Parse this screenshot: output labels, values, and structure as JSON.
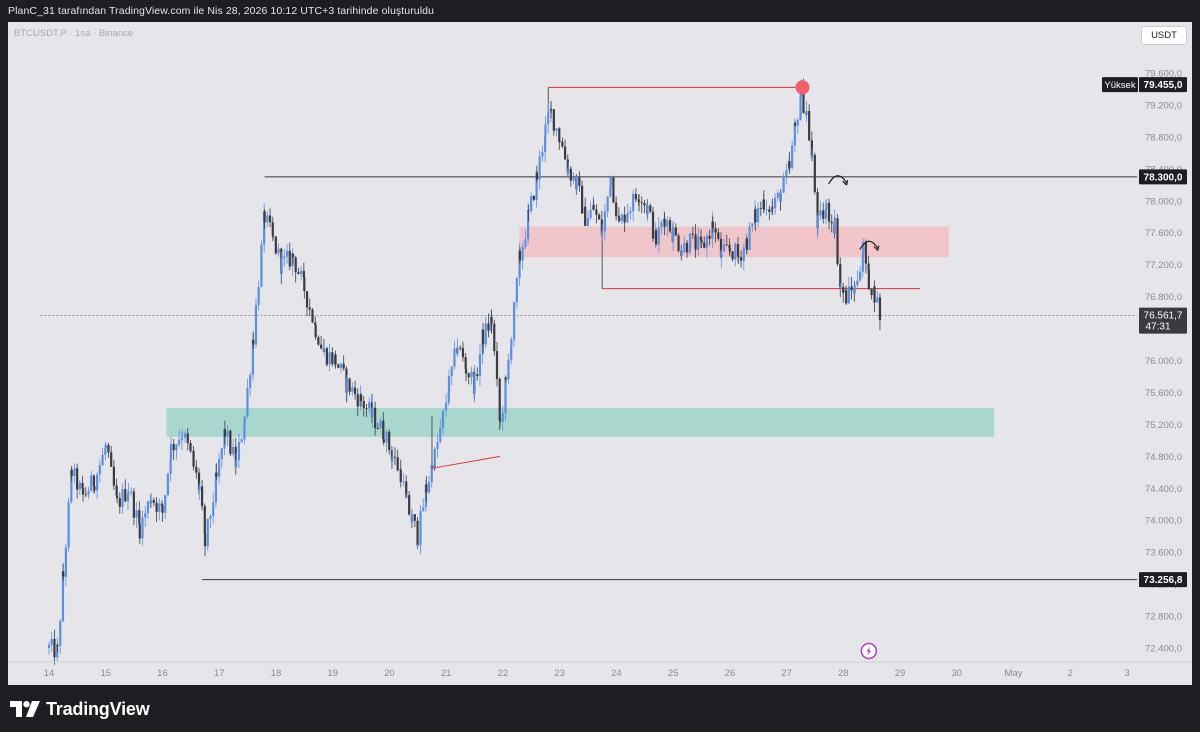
{
  "header": {
    "attribution": "PlanC_31 tarafından TradingView.com ile Nis 28, 2026 10:12 UTC+3 tarihinde oluşturuldu"
  },
  "chart_header": {
    "ticker": "BTCUSDT.P · 1sa · Binance",
    "currency_button": "USDT"
  },
  "footer": {
    "brand": "TradingView"
  },
  "chart_data": {
    "type": "candlestick",
    "title": "",
    "symbol": "BTCUSDT.P",
    "interval": "1sa",
    "exchange": "Binance",
    "currency": "USDT",
    "ylim": [
      72200,
      79800
    ],
    "y_ticks": [
      "72.400,0",
      "72.800,0",
      "73.200,0",
      "73.600,0",
      "74.000,0",
      "74.400,0",
      "74.800,0",
      "75.200,0",
      "75.600,0",
      "76.000,0",
      "76.400,0",
      "76.800,0",
      "77.200,0",
      "77.600,0",
      "78.000,0",
      "78.400,0",
      "78.800,0",
      "79.200,0",
      "79.600,0"
    ],
    "y_tick_values": [
      72400,
      72800,
      73200,
      73600,
      74000,
      74400,
      74800,
      75200,
      75600,
      76000,
      76400,
      76800,
      77200,
      77600,
      78000,
      78400,
      78800,
      79200,
      79600
    ],
    "x_ticks": [
      "14",
      "15",
      "16",
      "17",
      "18",
      "19",
      "20",
      "21",
      "22",
      "23",
      "24",
      "25",
      "26",
      "27",
      "28",
      "29",
      "30",
      "May",
      "2",
      "3"
    ],
    "x_tick_days": [
      14,
      15,
      16,
      17,
      18,
      19,
      20,
      21,
      22,
      23,
      24,
      25,
      26,
      27,
      28,
      29,
      30,
      31,
      32,
      33
    ],
    "xlim_days": [
      13.85,
      33.4
    ],
    "price_labels": [
      {
        "text": "79.455,0",
        "prefix": "Yüksek",
        "value": 79455,
        "style": "dark"
      },
      {
        "text": "78.300,0",
        "value": 78300,
        "style": "dark"
      },
      {
        "text": "76.561,7",
        "sub": "47:31",
        "value": 76561.7,
        "style": "last"
      },
      {
        "text": "73.256,8",
        "value": 73256.8,
        "style": "dark"
      }
    ],
    "levels": [
      {
        "name": "range-high",
        "price": 78300,
        "from_day": 17.8,
        "to_day": 33.4,
        "color": "#4a4a50"
      },
      {
        "name": "range-low",
        "price": 73256.8,
        "from_day": 16.7,
        "to_day": 33.4,
        "color": "#4a4a50"
      },
      {
        "name": "current-price",
        "price": 76561.7,
        "from_day": 13.85,
        "to_day": 33.4,
        "color": "#7a7a80",
        "dashed": true
      },
      {
        "name": "red-support",
        "price": 76900,
        "from_day": 23.75,
        "to_day": 29.35,
        "color": "#e0303a"
      },
      {
        "name": "red-high",
        "price": 79420,
        "from_day": 22.8,
        "to_day": 27.3,
        "color": "#e0303a"
      }
    ],
    "zones": [
      {
        "name": "supply-zone",
        "top": 77670,
        "bottom": 77300,
        "from_day": 22.3,
        "to_day": 29.85,
        "color": "#f0c6cb"
      },
      {
        "name": "demand-zone",
        "top": 75400,
        "bottom": 75050,
        "from_day": 16.08,
        "to_day": 30.65,
        "color": "#a9d6cd"
      }
    ],
    "trendline": {
      "from": [
        20.75,
        74650
      ],
      "to": [
        21.95,
        74800
      ],
      "color": "#e0303a"
    },
    "marker": {
      "day": 27.28,
      "price": 79420,
      "color": "#f0606a"
    },
    "series": [
      {
        "name": "",
        "points": [
          [
            14.0,
            72400
          ],
          [
            14.15,
            72350
          ],
          [
            14.25,
            73300
          ],
          [
            14.4,
            74600
          ],
          [
            14.6,
            74300
          ],
          [
            14.8,
            74500
          ],
          [
            15.0,
            74900
          ],
          [
            15.2,
            74200
          ],
          [
            15.4,
            74400
          ],
          [
            15.6,
            73900
          ],
          [
            15.8,
            74300
          ],
          [
            16.0,
            74100
          ],
          [
            16.15,
            74900
          ],
          [
            16.35,
            75100
          ],
          [
            16.5,
            74800
          ],
          [
            16.65,
            74400
          ],
          [
            16.75,
            73700
          ],
          [
            16.95,
            74500
          ],
          [
            17.1,
            75100
          ],
          [
            17.3,
            74700
          ],
          [
            17.45,
            75300
          ],
          [
            17.6,
            76300
          ],
          [
            17.8,
            77800
          ],
          [
            17.95,
            77500
          ],
          [
            18.1,
            77200
          ],
          [
            18.3,
            77300
          ],
          [
            18.5,
            76900
          ],
          [
            18.7,
            76400
          ],
          [
            18.85,
            76100
          ],
          [
            19.05,
            76000
          ],
          [
            19.25,
            75700
          ],
          [
            19.5,
            75500
          ],
          [
            19.7,
            75300
          ],
          [
            19.9,
            75100
          ],
          [
            20.05,
            74800
          ],
          [
            20.2,
            74600
          ],
          [
            20.3,
            74200
          ],
          [
            20.4,
            74000
          ],
          [
            20.5,
            73800
          ],
          [
            20.65,
            74400
          ],
          [
            20.8,
            74800
          ],
          [
            20.95,
            75300
          ],
          [
            21.05,
            75700
          ],
          [
            21.2,
            76200
          ],
          [
            21.35,
            75900
          ],
          [
            21.5,
            75700
          ],
          [
            21.65,
            76300
          ],
          [
            21.8,
            76500
          ],
          [
            21.95,
            75200
          ],
          [
            22.05,
            75700
          ],
          [
            22.15,
            76300
          ],
          [
            22.3,
            77300
          ],
          [
            22.45,
            77800
          ],
          [
            22.6,
            78300
          ],
          [
            22.75,
            78900
          ],
          [
            22.85,
            79100
          ],
          [
            23.0,
            78800
          ],
          [
            23.15,
            78400
          ],
          [
            23.3,
            78200
          ],
          [
            23.45,
            77800
          ],
          [
            23.6,
            77900
          ],
          [
            23.75,
            77600
          ],
          [
            23.9,
            78300
          ],
          [
            24.05,
            77700
          ],
          [
            24.2,
            77900
          ],
          [
            24.4,
            78100
          ],
          [
            24.55,
            77900
          ],
          [
            24.7,
            77500
          ],
          [
            24.85,
            77800
          ],
          [
            25.0,
            77600
          ],
          [
            25.15,
            77400
          ],
          [
            25.3,
            77500
          ],
          [
            25.5,
            77400
          ],
          [
            25.7,
            77700
          ],
          [
            25.85,
            77300
          ],
          [
            26.0,
            77400
          ],
          [
            26.15,
            77300
          ],
          [
            26.3,
            77500
          ],
          [
            26.45,
            77800
          ],
          [
            26.6,
            78000
          ],
          [
            26.75,
            77900
          ],
          [
            26.9,
            78100
          ],
          [
            27.05,
            78400
          ],
          [
            27.15,
            78900
          ],
          [
            27.25,
            79350
          ],
          [
            27.35,
            79100
          ],
          [
            27.45,
            78500
          ],
          [
            27.55,
            77700
          ],
          [
            27.7,
            77900
          ],
          [
            27.85,
            77700
          ],
          [
            27.95,
            76900
          ],
          [
            28.05,
            76800
          ],
          [
            28.2,
            76900
          ],
          [
            28.35,
            77400
          ],
          [
            28.45,
            77000
          ],
          [
            28.55,
            76850
          ],
          [
            28.65,
            76560
          ]
        ]
      }
    ]
  }
}
